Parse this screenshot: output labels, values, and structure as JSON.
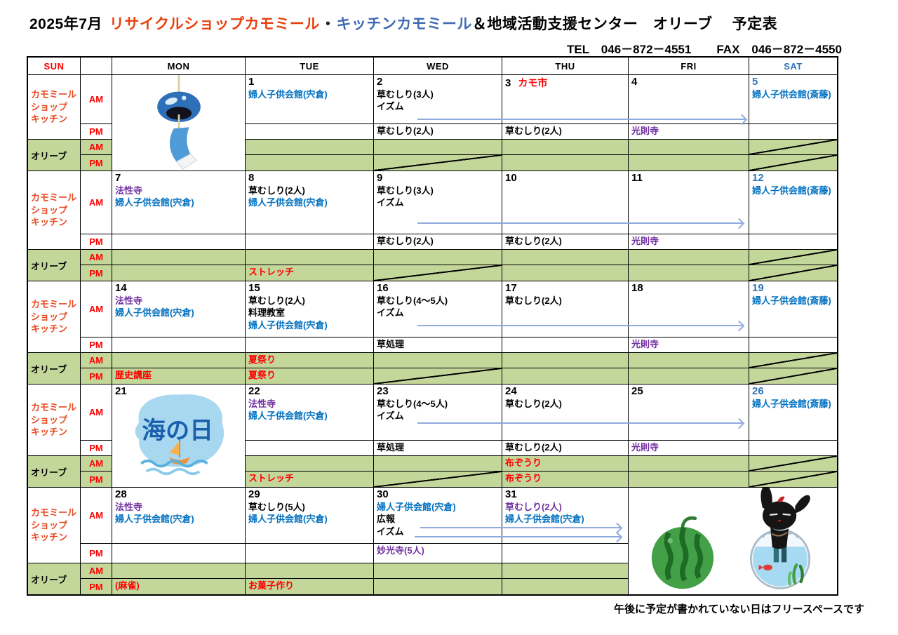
{
  "title": {
    "month": "2025年7月",
    "shop": "リサイクルショップカモミール",
    "separator": "・",
    "kitchen": "キッチンカモミール",
    "center": "＆地域活動支援センター　オリーブ",
    "suffix": "予定表"
  },
  "contact": {
    "tel": "TEL　046－872－4551",
    "fax": "FAX　046－872－4550"
  },
  "header": {
    "days": [
      "SUN",
      "",
      "MON",
      "TUE",
      "WED",
      "THU",
      "FRI",
      "SAT"
    ]
  },
  "row_labels": {
    "camomile": [
      "カモミール",
      "ショップ",
      "キッチン"
    ],
    "olive": "オリーブ",
    "am": "AM",
    "pm": "PM"
  },
  "footer_note": "午後に予定が書かれていない日はフリースペースです",
  "colors": {
    "sunday_red": "#ff0000",
    "label_red": "#e8481f",
    "title_red": "#e8400e",
    "title_blue": "#3f6ab4",
    "saturday_blue": "#2e75b6",
    "event_blue": "#0070c0",
    "event_purple": "#7030a0",
    "event_red": "#ff0000",
    "olive_green": "#c4d79b",
    "arrow_blue": "#8faadc"
  },
  "illustrations": {
    "wind_chime": "wind-chime-illustration",
    "marine_day": "umi-no-hi-marine-day-illustration",
    "watermelon_rabbit": "watermelon-and-rabbit-in-fishbowl-illustration"
  },
  "weeks": [
    {
      "days": {
        "mon": {
          "image": "wind_chime",
          "merge": "rows"
        },
        "tue": {
          "date": "1",
          "am": [
            {
              "text": "婦人子供会館(宍倉)",
              "color": "blue"
            }
          ]
        },
        "wed": {
          "date": "2",
          "am": [
            {
              "text": "草むしり(3人)",
              "color": "black"
            },
            {
              "text": "イズム",
              "color": "black"
            }
          ],
          "pm": [
            {
              "text": "草むしり(2人)",
              "color": "black"
            }
          ],
          "opm_diag": true
        },
        "thu": {
          "date": "3",
          "note": {
            "text": "カモ市",
            "color": "red"
          },
          "pm": [
            {
              "text": "草むしり(2人)",
              "color": "black"
            }
          ]
        },
        "fri": {
          "date": "4",
          "pm": [
            {
              "text": "光則寺",
              "color": "purple"
            }
          ]
        },
        "sat": {
          "date": "5",
          "date_color": "sat",
          "am": [
            {
              "text": "婦人子供会館(斎藤)",
              "color": "blue"
            }
          ],
          "oam_diag": true,
          "opm_diag": true
        }
      },
      "arrows": [
        {
          "from": "wed",
          "to": "fri"
        }
      ]
    },
    {
      "days": {
        "mon": {
          "date": "7",
          "am": [
            {
              "text": "法性寺",
              "color": "purple"
            },
            {
              "text": "婦人子供会館(宍倉)",
              "color": "blue"
            }
          ]
        },
        "tue": {
          "date": "8",
          "am": [
            {
              "text": "草むしり(2人)",
              "color": "black"
            },
            {
              "text": "婦人子供会館(宍倉)",
              "color": "blue"
            }
          ],
          "opm": [
            {
              "text": "ストレッチ",
              "color": "red"
            }
          ]
        },
        "wed": {
          "date": "9",
          "am": [
            {
              "text": "草むしり(3人)",
              "color": "black"
            },
            {
              "text": "イズム",
              "color": "black"
            }
          ],
          "pm": [
            {
              "text": "草むしり(2人)",
              "color": "black"
            }
          ],
          "opm_diag": true
        },
        "thu": {
          "date": "10",
          "pm": [
            {
              "text": "草むしり(2人)",
              "color": "black"
            }
          ]
        },
        "fri": {
          "date": "11",
          "pm": [
            {
              "text": "光則寺",
              "color": "purple"
            }
          ]
        },
        "sat": {
          "date": "12",
          "date_color": "sat",
          "am": [
            {
              "text": "婦人子供会館(斎藤)",
              "color": "blue"
            }
          ],
          "oam_diag": true,
          "opm_diag": true
        }
      },
      "arrows": [
        {
          "from": "wed",
          "to": "fri"
        }
      ]
    },
    {
      "days": {
        "mon": {
          "date": "14",
          "am": [
            {
              "text": "法性寺",
              "color": "purple"
            },
            {
              "text": "婦人子供会館(宍倉)",
              "color": "blue"
            }
          ],
          "opm": [
            {
              "text": "歴史講座",
              "color": "red"
            }
          ]
        },
        "tue": {
          "date": "15",
          "am": [
            {
              "text": "草むしり(2人)",
              "color": "black"
            },
            {
              "text": "料理教室",
              "color": "black"
            },
            {
              "text": "婦人子供会館(宍倉)",
              "color": "blue"
            }
          ],
          "oam": [
            {
              "text": "夏祭り",
              "color": "red"
            }
          ],
          "opm": [
            {
              "text": "夏祭り",
              "color": "red"
            }
          ]
        },
        "wed": {
          "date": "16",
          "am": [
            {
              "text": "草むしり(4～5人)",
              "color": "black"
            },
            {
              "text": "イズム",
              "color": "black"
            }
          ],
          "pm": [
            {
              "text": "草処理",
              "color": "black"
            }
          ],
          "opm_diag": true
        },
        "thu": {
          "date": "17",
          "am": [
            {
              "text": "草むしり(2人)",
              "color": "black"
            }
          ]
        },
        "fri": {
          "date": "18",
          "pm": [
            {
              "text": "光則寺",
              "color": "purple"
            }
          ]
        },
        "sat": {
          "date": "19",
          "date_color": "sat",
          "am": [
            {
              "text": "婦人子供会館(斎藤)",
              "color": "blue"
            }
          ],
          "oam_diag": true,
          "opm_diag": true
        }
      },
      "arrows": [
        {
          "from": "wed",
          "to": "fri"
        }
      ]
    },
    {
      "days": {
        "mon": {
          "date": "21",
          "image": "marine_day",
          "merge": "rows"
        },
        "tue": {
          "date": "22",
          "am": [
            {
              "text": "法性寺",
              "color": "purple"
            },
            {
              "text": "婦人子供会館(宍倉)",
              "color": "blue"
            }
          ],
          "opm": [
            {
              "text": "ストレッチ",
              "color": "red"
            }
          ]
        },
        "wed": {
          "date": "23",
          "am": [
            {
              "text": "草むしり(4～5人)",
              "color": "black"
            },
            {
              "text": "イズム",
              "color": "black"
            }
          ],
          "pm": [
            {
              "text": "草処理",
              "color": "black"
            }
          ],
          "opm_diag": true
        },
        "thu": {
          "date": "24",
          "am": [
            {
              "text": "草むしり(2人)",
              "color": "black"
            }
          ],
          "pm": [
            {
              "text": "草むしり(2人)",
              "color": "black"
            }
          ],
          "oam": [
            {
              "text": "布ぞうり",
              "color": "red"
            }
          ],
          "opm": [
            {
              "text": "布ぞうり",
              "color": "red"
            }
          ]
        },
        "fri": {
          "date": "25",
          "pm": [
            {
              "text": "光則寺",
              "color": "purple"
            }
          ]
        },
        "sat": {
          "date": "26",
          "date_color": "sat",
          "am": [
            {
              "text": "婦人子供会館(斎藤)",
              "color": "blue"
            }
          ],
          "oam_diag": true,
          "opm_diag": true
        }
      },
      "arrows": [
        {
          "from": "wed",
          "to": "fri"
        }
      ]
    },
    {
      "days": {
        "mon": {
          "date": "28",
          "am": [
            {
              "text": "法性寺",
              "color": "purple"
            },
            {
              "text": "婦人子供会館(宍倉)",
              "color": "blue"
            }
          ],
          "opm": [
            {
              "text": "(麻雀)",
              "color": "red"
            }
          ]
        },
        "tue": {
          "date": "29",
          "am": [
            {
              "text": "草むしり(5人)",
              "color": "black"
            },
            {
              "text": "婦人子供会館(宍倉)",
              "color": "blue"
            }
          ],
          "opm": [
            {
              "text": "お菓子作り",
              "color": "red"
            }
          ]
        },
        "wed": {
          "date": "30",
          "am": [
            {
              "text": "婦人子供会館(宍倉)",
              "color": "blue"
            },
            {
              "text": "広報",
              "color": "black"
            },
            {
              "text": "イズム",
              "color": "black"
            }
          ],
          "pm": [
            {
              "text": "妙光寺(5人)",
              "color": "purple"
            }
          ]
        },
        "thu": {
          "date": "31",
          "am": [
            {
              "text": "草むしり(2人)",
              "color": "purple"
            },
            {
              "text": "婦人子供会館(宍倉)",
              "color": "blue"
            }
          ]
        },
        "fri": {
          "image": "watermelon_rabbit",
          "merge": "block"
        },
        "sat": {
          "merged": true
        }
      },
      "arrows": [
        {
          "from": "wed",
          "to": "thu"
        },
        {
          "from": "wed",
          "to": "thu"
        }
      ]
    }
  ]
}
